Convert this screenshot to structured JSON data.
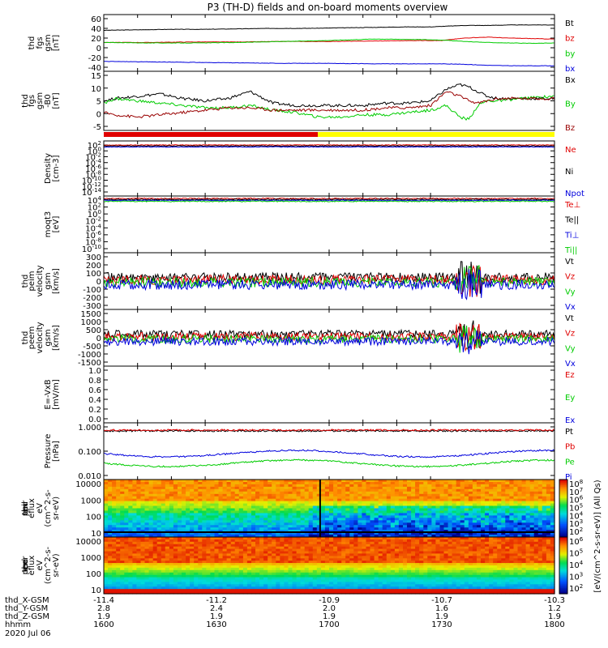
{
  "title": "P3 (TH-D) fields and on-board moments overview",
  "colors": {
    "black": "#000000",
    "red": "#e00000",
    "green": "#00cc00",
    "blue": "#0000dd",
    "darkred": "#990000",
    "yellow": "#ffff00"
  },
  "chart_data": [
    {
      "type": "line",
      "ylabel": [
        "thd",
        "fgs",
        "gsm",
        "[nT]"
      ],
      "ylim": [
        -40,
        60
      ],
      "yticks": [
        "60",
        "40",
        "20",
        "0",
        "-20",
        "-40"
      ],
      "series": [
        {
          "name": "Bt",
          "color": "black",
          "x": [
            1600,
            1615,
            1630,
            1645,
            1660,
            1675,
            1690,
            1705,
            1720,
            1735,
            1745,
            1750,
            1760,
            1770,
            1780,
            1790,
            1800
          ],
          "values": [
            36,
            37,
            38,
            38,
            39,
            40,
            40,
            41,
            42,
            43,
            43,
            44,
            46,
            46,
            47,
            47,
            47
          ]
        },
        {
          "name": "bz",
          "color": "red",
          "x": [
            1600,
            1620,
            1640,
            1660,
            1680,
            1700,
            1720,
            1740,
            1750,
            1760,
            1770,
            1780,
            1790,
            1800
          ],
          "values": [
            11,
            11,
            12,
            12,
            13,
            13,
            14,
            15,
            15,
            20,
            22,
            20,
            19,
            18
          ]
        },
        {
          "name": "by",
          "color": "green",
          "x": [
            1600,
            1620,
            1640,
            1660,
            1680,
            1700,
            1720,
            1740,
            1750,
            1760,
            1770,
            1780,
            1790,
            1800
          ],
          "values": [
            11,
            10,
            10,
            11,
            13,
            15,
            18,
            17,
            16,
            13,
            11,
            10,
            9,
            10
          ]
        },
        {
          "name": "bx",
          "color": "blue",
          "x": [
            1600,
            1620,
            1640,
            1660,
            1680,
            1700,
            1720,
            1740,
            1750,
            1760,
            1770,
            1780,
            1790,
            1800
          ],
          "values": [
            -28,
            -29,
            -30,
            -31,
            -32,
            -32,
            -33,
            -33,
            -33,
            -34,
            -36,
            -37,
            -37,
            -37
          ]
        }
      ]
    },
    {
      "type": "line",
      "ylabel": [
        "thd",
        "fgs",
        "gsm",
        "-B0",
        "[nT]"
      ],
      "ylim": [
        -7,
        15
      ],
      "yticks": [
        "15",
        "10",
        "5",
        "0",
        "-5"
      ],
      "series": [
        {
          "name": "Bx",
          "color": "black",
          "x": [
            1600,
            1605,
            1615,
            1625,
            1635,
            1645,
            1655,
            1665,
            1675,
            1685,
            1695,
            1705,
            1715,
            1725,
            1735,
            1745,
            1752,
            1758,
            1762,
            1766,
            1770,
            1775,
            1785,
            1800
          ],
          "values": [
            4,
            5,
            6,
            7,
            5,
            4,
            5,
            8,
            3,
            2,
            2,
            2,
            2,
            3,
            3,
            4,
            9,
            11,
            10,
            8,
            6,
            5,
            5,
            5
          ]
        },
        {
          "name": "By",
          "color": "green",
          "x": [
            1600,
            1605,
            1615,
            1625,
            1635,
            1645,
            1655,
            1665,
            1675,
            1685,
            1695,
            1705,
            1715,
            1725,
            1735,
            1745,
            1752,
            1758,
            1762,
            1766,
            1770,
            1775,
            1785,
            1800
          ],
          "values": [
            3,
            5,
            4,
            3,
            2,
            1,
            1,
            2,
            0,
            -1,
            -3,
            -3,
            -2,
            -2,
            -1,
            0,
            2,
            -3,
            -4,
            2,
            4,
            4,
            5,
            6
          ]
        },
        {
          "name": "Bz",
          "color": "darkred",
          "x": [
            1600,
            1605,
            1615,
            1625,
            1635,
            1645,
            1655,
            1665,
            1675,
            1685,
            1695,
            1705,
            1715,
            1725,
            1735,
            1745,
            1752,
            1758,
            1762,
            1766,
            1770,
            1775,
            1785,
            1800
          ],
          "values": [
            -1,
            -2,
            -3,
            -2,
            -1,
            0,
            1,
            1,
            0,
            0,
            0,
            0,
            0,
            1,
            1,
            2,
            8,
            6,
            4,
            3,
            4,
            5,
            5,
            5
          ]
        }
      ]
    },
    {
      "type": "line",
      "ylabel": [
        "Density",
        "[cm-3]"
      ],
      "scale": "log",
      "yticks": [
        "10^2",
        "10^0",
        "10^-2",
        "10^-4",
        "10^-6",
        "10^-8",
        "10^-10",
        "10^-12",
        "10^-14"
      ],
      "series": [
        {
          "name": "Ne",
          "color": "red"
        },
        {
          "name": "Ni",
          "color": "black"
        },
        {
          "name": "Npot",
          "color": "blue"
        }
      ]
    },
    {
      "type": "line",
      "ylabel": [
        "moqt3",
        "[eV]"
      ],
      "scale": "log",
      "yticks": [
        "10^4",
        "10^2",
        "10^0",
        "10^-2",
        "10^-4",
        "10^-6",
        "10^-8",
        "10^-10"
      ],
      "series": [
        {
          "name": "Te⊥",
          "color": "red"
        },
        {
          "name": "Te||",
          "color": "black"
        },
        {
          "name": "Ti⊥",
          "color": "blue"
        },
        {
          "name": "Ti||",
          "color": "green"
        }
      ]
    },
    {
      "type": "line",
      "ylabel": [
        "thd",
        "peim",
        "velocity",
        "gsm",
        "[km/s]"
      ],
      "ylim": [
        -300,
        300
      ],
      "yticks": [
        "300",
        "200",
        "100",
        "0",
        "-100",
        "-200",
        "-300"
      ],
      "series": [
        {
          "name": "Vt",
          "color": "black"
        },
        {
          "name": "Vz",
          "color": "red"
        },
        {
          "name": "Vy",
          "color": "green"
        },
        {
          "name": "Vx",
          "color": "blue"
        }
      ]
    },
    {
      "type": "line",
      "ylabel": [
        "thd",
        "peem",
        "velocity",
        "gsm",
        "[km/s]"
      ],
      "ylim": [
        -1500,
        1500
      ],
      "yticks": [
        "1500",
        "1000",
        "500",
        "0",
        "-500",
        "-1000",
        "-1500"
      ],
      "series": [
        {
          "name": "Vt",
          "color": "black"
        },
        {
          "name": "Vz",
          "color": "red"
        },
        {
          "name": "Vy",
          "color": "green"
        },
        {
          "name": "Vx",
          "color": "blue"
        }
      ]
    },
    {
      "type": "line",
      "ylabel": [
        "E=-VxB",
        "[mV/m]"
      ],
      "ylim": [
        0,
        1
      ],
      "yticks": [
        "1.0",
        "0.8",
        "0.6",
        "0.4",
        "0.2",
        "0.0"
      ],
      "series": [
        {
          "name": "Ez",
          "color": "red"
        },
        {
          "name": "Ey",
          "color": "green"
        },
        {
          "name": "Ex",
          "color": "blue"
        }
      ]
    },
    {
      "type": "line",
      "ylabel": [
        "Pressure",
        "[nPa]"
      ],
      "scale": "log",
      "yticks": [
        "1.000",
        "0.100",
        "0.010"
      ],
      "series": [
        {
          "name": "Pt",
          "color": "black"
        },
        {
          "name": "Pb",
          "color": "red"
        },
        {
          "name": "Pe",
          "color": "green"
        },
        {
          "name": "Pi",
          "color": "blue"
        }
      ]
    },
    {
      "type": "heatmap",
      "ylabel": [
        "thd",
        "peir",
        "en",
        "eflux",
        "eV",
        "(cm^2-s-",
        "sr-eV)"
      ],
      "yticks": [
        "10000",
        "1000",
        "100",
        "10"
      ]
    },
    {
      "type": "heatmap",
      "ylabel": [
        "thd",
        "peer",
        "en",
        "eflux",
        "eV",
        "(cm^2-s-",
        "sr-eV)"
      ],
      "yticks": [
        "10000",
        "1000",
        "100",
        "10"
      ]
    }
  ],
  "colorbar": {
    "top_ticks": [
      "10^8",
      "10^7",
      "10^6",
      "10^5",
      "10^4",
      "10^3",
      "10^2"
    ],
    "bottom_ticks": [
      "10^6",
      "10^5",
      "10^4",
      "10^3",
      "10^2"
    ],
    "label": "[eV/(cm^2-s-sr-eV)] (All Qs)"
  },
  "xaxis": {
    "rows": [
      {
        "label": "thd_X-GSM",
        "values": [
          "-11.4",
          "-11.2",
          "-10.9",
          "-10.7",
          "-10.3"
        ]
      },
      {
        "label": "thd_Y-GSM",
        "values": [
          "2.8",
          "2.4",
          "2.0",
          "1.6",
          "1.2"
        ]
      },
      {
        "label": "thd_Z-GSM",
        "values": [
          "1.9",
          "1.9",
          "1.9",
          "1.9",
          "1.9"
        ]
      },
      {
        "label": "hhmm",
        "values": [
          "1600",
          "1630",
          "1700",
          "1730",
          "1800"
        ]
      }
    ],
    "date": "2020 Jul 06"
  }
}
